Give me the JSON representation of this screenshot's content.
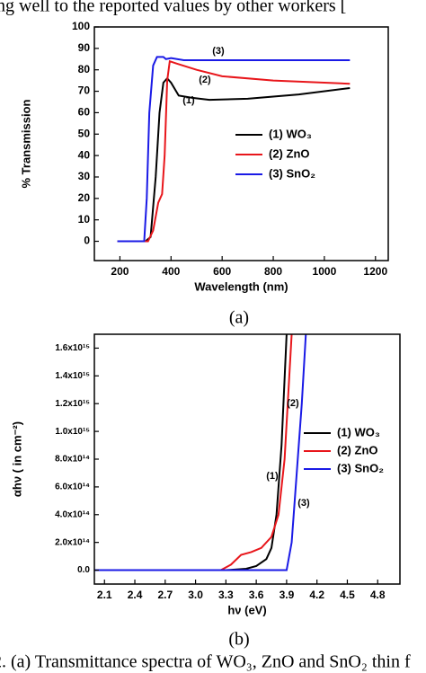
{
  "header_text": "ng well to the reported values by other workers [",
  "chart_data": [
    {
      "type": "line",
      "caption": "(a)",
      "xlabel": "Wavelength (nm)",
      "ylabel": "% Transmission",
      "xlim": [
        100,
        1250
      ],
      "ylim": [
        -9,
        100
      ],
      "xticks": [
        200,
        400,
        600,
        800,
        1000,
        1200
      ],
      "yticks": [
        0,
        10,
        20,
        30,
        40,
        50,
        60,
        70,
        80,
        90,
        100
      ],
      "legend": "center-right",
      "grid": false,
      "annotations": [
        "(1)",
        "(2)",
        "(3)"
      ],
      "series": [
        {
          "name": "(1) WO₃",
          "color": "#000000",
          "x": [
            190,
            300,
            320,
            340,
            355,
            370,
            385,
            400,
            430,
            480,
            550,
            700,
            900,
            1100
          ],
          "values": [
            0,
            0,
            2,
            30,
            60,
            74,
            76,
            74,
            68,
            67,
            66,
            66.5,
            68.5,
            71.5
          ]
        },
        {
          "name": "(2) ZnO",
          "color": "#e8161b",
          "x": [
            190,
            310,
            330,
            350,
            365,
            375,
            385,
            395,
            420,
            500,
            600,
            800,
            1100
          ],
          "values": [
            0,
            0,
            5,
            18,
            22,
            40,
            75,
            84,
            83,
            80,
            77,
            75,
            73.5
          ]
        },
        {
          "name": "(3) SnO₂",
          "color": "#1a1ae6",
          "x": [
            190,
            295,
            305,
            315,
            330,
            345,
            370,
            380,
            400,
            450,
            600,
            800,
            1100
          ],
          "values": [
            0,
            0,
            20,
            60,
            82,
            86,
            86,
            85,
            85.5,
            84.5,
            84.5,
            84.5,
            84.5
          ]
        }
      ]
    },
    {
      "type": "line",
      "caption": "(b)",
      "xlabel": "hν (eV)",
      "ylabel": "αhν ( in cm⁻²)",
      "xlim": [
        2.0,
        5.02
      ],
      "ylim": [
        -100000000000000.0,
        1700000000000000.0
      ],
      "xticks": [
        2.1,
        2.4,
        2.7,
        {
          "value": 3,
          "label": "3.0"
        },
        3.3,
        3.6,
        3.9,
        4.2,
        4.5,
        4.8
      ],
      "yticks": [
        {
          "value": 0,
          "label": "0.0"
        },
        {
          "value": 200000000000000.0,
          "label": "2.0x10¹⁴"
        },
        {
          "value": 400000000000000.0,
          "label": "4.0x10¹⁴"
        },
        {
          "value": 600000000000000.0,
          "label": "6.0x10¹⁴"
        },
        {
          "value": 800000000000000.0,
          "label": "8.0x10¹⁴"
        },
        {
          "value": 1000000000000000.0,
          "label": "1.0x10¹⁵"
        },
        {
          "value": 1200000000000000.0,
          "label": "1.2x10¹⁵"
        },
        {
          "value": 1400000000000000.0,
          "label": "1.4x10¹⁵"
        },
        {
          "value": 1600000000000000.0,
          "label": "1.6x10¹⁵"
        }
      ],
      "legend": "center-right",
      "grid": false,
      "annotations": [
        "(1)",
        "(2)",
        "(3)"
      ],
      "series": [
        {
          "name": "(1) WO₃",
          "color": "#000000",
          "x": [
            2.0,
            3.3,
            3.5,
            3.6,
            3.7,
            3.75,
            3.8,
            3.85,
            3.9
          ],
          "values": [
            0,
            0,
            10000000000000.0,
            30000000000000.0,
            80000000000000.0,
            160000000000000.0,
            400000000000000.0,
            900000000000000.0,
            1700000000000000.0
          ]
        },
        {
          "name": "(2) ZnO",
          "color": "#e8161b",
          "x": [
            2.0,
            3.25,
            3.35,
            3.45,
            3.55,
            3.65,
            3.75,
            3.82,
            3.88,
            3.95
          ],
          "values": [
            0,
            0,
            40000000000000.0,
            110000000000000.0,
            130000000000000.0,
            160000000000000.0,
            240000000000000.0,
            400000000000000.0,
            800000000000000.0,
            1700000000000000.0
          ]
        },
        {
          "name": "(3) SnO₂",
          "color": "#1a1ae6",
          "x": [
            2.0,
            3.9,
            3.95,
            4.0,
            4.05,
            4.09
          ],
          "values": [
            0,
            0,
            200000000000000.0,
            700000000000000.0,
            1200000000000000.0,
            1700000000000000.0
          ]
        }
      ]
    }
  ],
  "footer_text": "2. (a) Transmittance spectra of WO₃, ZnO and SnO₂ thin f"
}
